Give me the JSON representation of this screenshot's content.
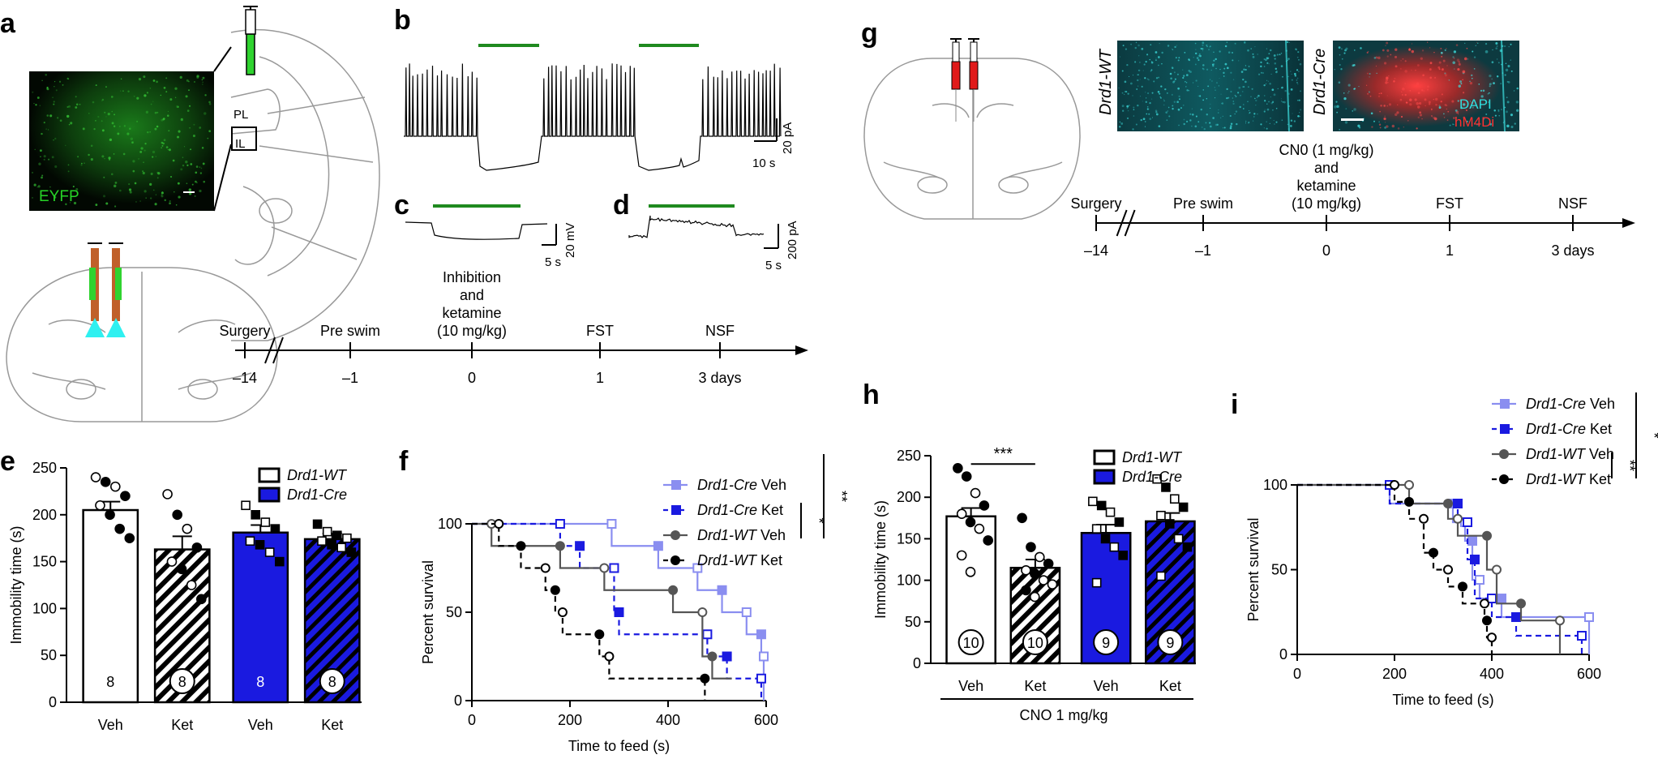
{
  "panel_labels": {
    "a": "a",
    "b": "b",
    "c": "c",
    "d": "d",
    "e": "e",
    "f": "f",
    "g": "g",
    "h": "h",
    "i": "i"
  },
  "micrographs": {
    "a": {
      "stain": "EYFP",
      "colors": {
        "signal": "#1fb31f"
      }
    },
    "g_wt": {
      "genotype": "Drd1-WT"
    },
    "g_cre": {
      "genotype": "Drd1-Cre",
      "stain1": "DAPI",
      "stain2": "hM4Di",
      "colors": {
        "dapi": "#1fd3d3",
        "hm4di": "#ff3030"
      }
    }
  },
  "brain_labels": {
    "pl": "PL",
    "il": "IL"
  },
  "traces": {
    "b": {
      "scale_time": "10 s",
      "scale_amp": "20 pA"
    },
    "c": {
      "scale_time": "5 s",
      "scale_amp": "20 mV"
    },
    "d": {
      "scale_time": "5 s",
      "scale_amp": "200 pA"
    }
  },
  "timeline_a": {
    "events": [
      {
        "label": "Surgery",
        "tick": "–14"
      },
      {
        "label": "Pre swim",
        "tick": "–1"
      },
      {
        "label": "Inhibition\nand\nketamine\n(10 mg/kg)",
        "tick": "0"
      },
      {
        "label": "FST",
        "tick": "1"
      },
      {
        "label": "NSF",
        "tick": "3 days"
      }
    ]
  },
  "timeline_g": {
    "events": [
      {
        "label": "Surgery",
        "tick": "–14"
      },
      {
        "label": "Pre swim",
        "tick": "–1"
      },
      {
        "label": "CN0 (1 mg/kg)\nand\nketamine\n(10 mg/kg)",
        "tick": "0"
      },
      {
        "label": "FST",
        "tick": "1"
      },
      {
        "label": "NSF",
        "tick": "3 days"
      }
    ]
  },
  "chart_data": [
    {
      "panel": "e",
      "type": "bar",
      "ylabel": "Immobility time (s)",
      "ylim": [
        0,
        250
      ],
      "yticks": [
        0,
        50,
        100,
        150,
        200,
        250
      ],
      "categories": [
        "Veh",
        "Ket",
        "Veh",
        "Ket"
      ],
      "legend": [
        "Drd1-WT",
        "Drd1-Cre"
      ],
      "bars": [
        {
          "group": "Drd1-WT",
          "treatment": "Veh",
          "value": 205,
          "sem": 9,
          "n": "8",
          "points": [
            {
              "v": 240,
              "f": 0
            },
            {
              "v": 235,
              "f": 1
            },
            {
              "v": 230,
              "f": 0
            },
            {
              "v": 220,
              "f": 1
            },
            {
              "v": 210,
              "f": 0
            },
            {
              "v": 200,
              "f": 1
            },
            {
              "v": 185,
              "f": 1
            },
            {
              "v": 175,
              "f": 1
            }
          ]
        },
        {
          "group": "Drd1-WT",
          "treatment": "Ket",
          "value": 163,
          "sem": 14,
          "n": "8",
          "points": [
            {
              "v": 222,
              "f": 0
            },
            {
              "v": 200,
              "f": 1
            },
            {
              "v": 185,
              "f": 0
            },
            {
              "v": 165,
              "f": 1
            },
            {
              "v": 150,
              "f": 0
            },
            {
              "v": 142,
              "f": 1
            },
            {
              "v": 125,
              "f": 0
            },
            {
              "v": 110,
              "f": 1
            }
          ]
        },
        {
          "group": "Drd1-Cre",
          "treatment": "Veh",
          "value": 181,
          "sem": 8,
          "n": "8",
          "points": [
            {
              "v": 210,
              "f": 0
            },
            {
              "v": 200,
              "f": 1
            },
            {
              "v": 192,
              "f": 0
            },
            {
              "v": 185,
              "f": 1
            },
            {
              "v": 172,
              "f": 0
            },
            {
              "v": 168,
              "f": 1
            },
            {
              "v": 160,
              "f": 0
            },
            {
              "v": 150,
              "f": 1
            }
          ]
        },
        {
          "group": "Drd1-Cre",
          "treatment": "Ket",
          "value": 174,
          "sem": 6,
          "n": "8",
          "points": [
            {
              "v": 190,
              "f": 1
            },
            {
              "v": 182,
              "f": 0
            },
            {
              "v": 178,
              "f": 1
            },
            {
              "v": 175,
              "f": 0
            },
            {
              "v": 172,
              "f": 0
            },
            {
              "v": 168,
              "f": 1
            },
            {
              "v": 165,
              "f": 0
            },
            {
              "v": 160,
              "f": 1
            }
          ]
        }
      ]
    },
    {
      "panel": "f",
      "type": "line",
      "xlabel": "Time to feed (s)",
      "ylabel": "Percent survival",
      "xlim": [
        0,
        600
      ],
      "ylim": [
        0,
        100
      ],
      "xticks": [
        0,
        200,
        400,
        600
      ],
      "yticks": [
        0,
        50,
        100
      ],
      "series": [
        {
          "name": "Drd1-Cre Veh",
          "color": "#8a8ef0",
          "dash": false,
          "marker": "square",
          "steps": [
            [
              0,
              100
            ],
            [
              285,
              87.5
            ],
            [
              380,
              75
            ],
            [
              460,
              62.5
            ],
            [
              510,
              50
            ],
            [
              560,
              37.5
            ],
            [
              590,
              25
            ],
            [
              595,
              0
            ]
          ]
        },
        {
          "name": "Drd1-Cre Ket",
          "color": "#1a1ae0",
          "dash": true,
          "marker": "square",
          "steps": [
            [
              0,
              100
            ],
            [
              180,
              87.5
            ],
            [
              220,
              75
            ],
            [
              290,
              50
            ],
            [
              300,
              37.5
            ],
            [
              480,
              25
            ],
            [
              520,
              12.5
            ],
            [
              590,
              0
            ]
          ]
        },
        {
          "name": "Drd1-WT Veh",
          "color": "#555555",
          "dash": false,
          "marker": "circle",
          "steps": [
            [
              0,
              100
            ],
            [
              40,
              87.5
            ],
            [
              180,
              75
            ],
            [
              270,
              62.5
            ],
            [
              410,
              50
            ],
            [
              470,
              25
            ],
            [
              490,
              12.5
            ]
          ]
        },
        {
          "name": "Drd1-WT Ket",
          "color": "#000000",
          "dash": true,
          "marker": "circle",
          "steps": [
            [
              0,
              100
            ],
            [
              55,
              87.5
            ],
            [
              100,
              75
            ],
            [
              150,
              62.5
            ],
            [
              170,
              50
            ],
            [
              185,
              37.5
            ],
            [
              260,
              25
            ],
            [
              280,
              12.5
            ],
            [
              475,
              0
            ]
          ]
        }
      ],
      "significance": [
        {
          "label": "*"
        },
        {
          "label": "**"
        }
      ]
    },
    {
      "panel": "h",
      "type": "bar",
      "ylabel": "Immobility time (s)",
      "ylim": [
        0,
        250
      ],
      "yticks": [
        0,
        50,
        100,
        150,
        200,
        250
      ],
      "categories": [
        "Veh",
        "Ket",
        "Veh",
        "Ket"
      ],
      "legend": [
        "Drd1-WT",
        "Drd1-Cre"
      ],
      "xgroup_label": "CNO 1 mg/kg",
      "significance": "***",
      "bars": [
        {
          "group": "Drd1-WT",
          "treatment": "Veh",
          "value": 177,
          "sem": 10,
          "n": "10",
          "points": [
            {
              "v": 235,
              "f": 1
            },
            {
              "v": 225,
              "f": 1
            },
            {
              "v": 205,
              "f": 0
            },
            {
              "v": 190,
              "f": 1
            },
            {
              "v": 180,
              "f": 0
            },
            {
              "v": 170,
              "f": 1
            },
            {
              "v": 162,
              "f": 0
            },
            {
              "v": 148,
              "f": 1
            },
            {
              "v": 130,
              "f": 0
            },
            {
              "v": 110,
              "f": 0
            }
          ]
        },
        {
          "group": "Drd1-WT",
          "treatment": "Ket",
          "value": 115,
          "sem": 10,
          "n": "10",
          "points": [
            {
              "v": 175,
              "f": 1
            },
            {
              "v": 140,
              "f": 1
            },
            {
              "v": 128,
              "f": 0
            },
            {
              "v": 120,
              "f": 1
            },
            {
              "v": 112,
              "f": 0
            },
            {
              "v": 108,
              "f": 1
            },
            {
              "v": 100,
              "f": 0
            },
            {
              "v": 95,
              "f": 0
            },
            {
              "v": 88,
              "f": 1
            },
            {
              "v": 80,
              "f": 0
            }
          ]
        },
        {
          "group": "Drd1-Cre",
          "treatment": "Veh",
          "value": 157,
          "sem": 10,
          "n": "9",
          "points": [
            {
              "v": 195,
              "f": 0
            },
            {
              "v": 190,
              "f": 1
            },
            {
              "v": 182,
              "f": 0
            },
            {
              "v": 170,
              "f": 1
            },
            {
              "v": 162,
              "f": 0
            },
            {
              "v": 150,
              "f": 1
            },
            {
              "v": 140,
              "f": 0
            },
            {
              "v": 130,
              "f": 1
            },
            {
              "v": 97,
              "f": 0
            }
          ]
        },
        {
          "group": "Drd1-Cre",
          "treatment": "Ket",
          "value": 171,
          "sem": 10,
          "n": "9",
          "points": [
            {
              "v": 222,
              "f": 0
            },
            {
              "v": 212,
              "f": 1
            },
            {
              "v": 198,
              "f": 0
            },
            {
              "v": 188,
              "f": 1
            },
            {
              "v": 178,
              "f": 0
            },
            {
              "v": 168,
              "f": 1
            },
            {
              "v": 150,
              "f": 0
            },
            {
              "v": 140,
              "f": 1
            },
            {
              "v": 105,
              "f": 0
            }
          ]
        }
      ]
    },
    {
      "panel": "i",
      "type": "line",
      "xlabel": "Time to feed (s)",
      "ylabel": "Percent survival",
      "xlim": [
        0,
        600
      ],
      "ylim": [
        0,
        100
      ],
      "xticks": [
        0,
        200,
        400,
        600
      ],
      "yticks": [
        0,
        50,
        100
      ],
      "series": [
        {
          "name": "Drd1-Cre Veh",
          "color": "#8a8ef0",
          "dash": false,
          "marker": "square",
          "steps": [
            [
              0,
              100
            ],
            [
              190,
              89
            ],
            [
              320,
              78
            ],
            [
              345,
              67
            ],
            [
              360,
              44
            ],
            [
              375,
              33
            ],
            [
              420,
              22
            ],
            [
              600,
              0
            ]
          ]
        },
        {
          "name": "Drd1-Cre Ket",
          "color": "#1a1ae0",
          "dash": true,
          "marker": "square",
          "steps": [
            [
              0,
              100
            ],
            [
              190,
              89
            ],
            [
              330,
              78
            ],
            [
              350,
              56
            ],
            [
              365,
              33
            ],
            [
              400,
              22
            ],
            [
              450,
              11
            ],
            [
              585,
              0
            ]
          ]
        },
        {
          "name": "Drd1-WT Veh",
          "color": "#555555",
          "dash": false,
          "marker": "circle",
          "steps": [
            [
              0,
              100
            ],
            [
              230,
              89
            ],
            [
              310,
              80
            ],
            [
              330,
              70
            ],
            [
              390,
              50
            ],
            [
              410,
              30
            ],
            [
              460,
              20
            ],
            [
              540,
              0
            ]
          ]
        },
        {
          "name": "Drd1-WT Ket",
          "color": "#000000",
          "dash": true,
          "marker": "circle",
          "steps": [
            [
              0,
              100
            ],
            [
              200,
              90
            ],
            [
              230,
              80
            ],
            [
              260,
              60
            ],
            [
              280,
              50
            ],
            [
              310,
              40
            ],
            [
              340,
              30
            ],
            [
              385,
              20
            ],
            [
              390,
              10
            ],
            [
              400,
              0
            ]
          ]
        }
      ],
      "significance": [
        {
          "label": "**"
        },
        {
          "label": "*"
        }
      ]
    }
  ]
}
